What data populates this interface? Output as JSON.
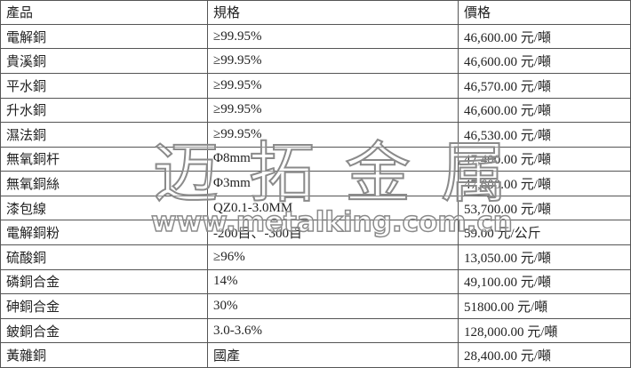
{
  "table": {
    "headers": [
      "產品",
      "規格",
      "價格"
    ],
    "rows": [
      [
        "電解銅",
        "≥99.95%",
        "46,600.00 元/噸"
      ],
      [
        "貴溪銅",
        "≥99.95%",
        "46,600.00 元/噸"
      ],
      [
        "平水銅",
        "≥99.95%",
        "46,570.00 元/噸"
      ],
      [
        "升水銅",
        "≥99.95%",
        "46,600.00 元/噸"
      ],
      [
        "濕法銅",
        "≥99.95%",
        "46,530.00 元/噸"
      ],
      [
        "無氧銅杆",
        "Φ8mm",
        "47,400.00 元/噸"
      ],
      [
        "無氧銅絲",
        "Φ3mm",
        "47,600.00 元/噸"
      ],
      [
        "漆包線",
        "QZ0.1-3.0MM",
        "53,700.00 元/噸"
      ],
      [
        "電解銅粉",
        "-200目、-300目",
        "59.00 元/公斤"
      ],
      [
        "硫酸銅",
        "≥96%",
        "13,050.00 元/噸"
      ],
      [
        "磷銅合金",
        "14%",
        "49,100.00 元/噸"
      ],
      [
        "砷銅合金",
        "30%",
        "51800.00 元/噸"
      ],
      [
        "鈹銅合金",
        "3.0-3.6%",
        "128,000.00 元/噸"
      ],
      [
        "黃雜銅",
        "國產",
        "28,400.00 元/噸"
      ]
    ]
  },
  "watermark": {
    "name": "迈拓金属",
    "url": "www.metalking.com.cn"
  }
}
